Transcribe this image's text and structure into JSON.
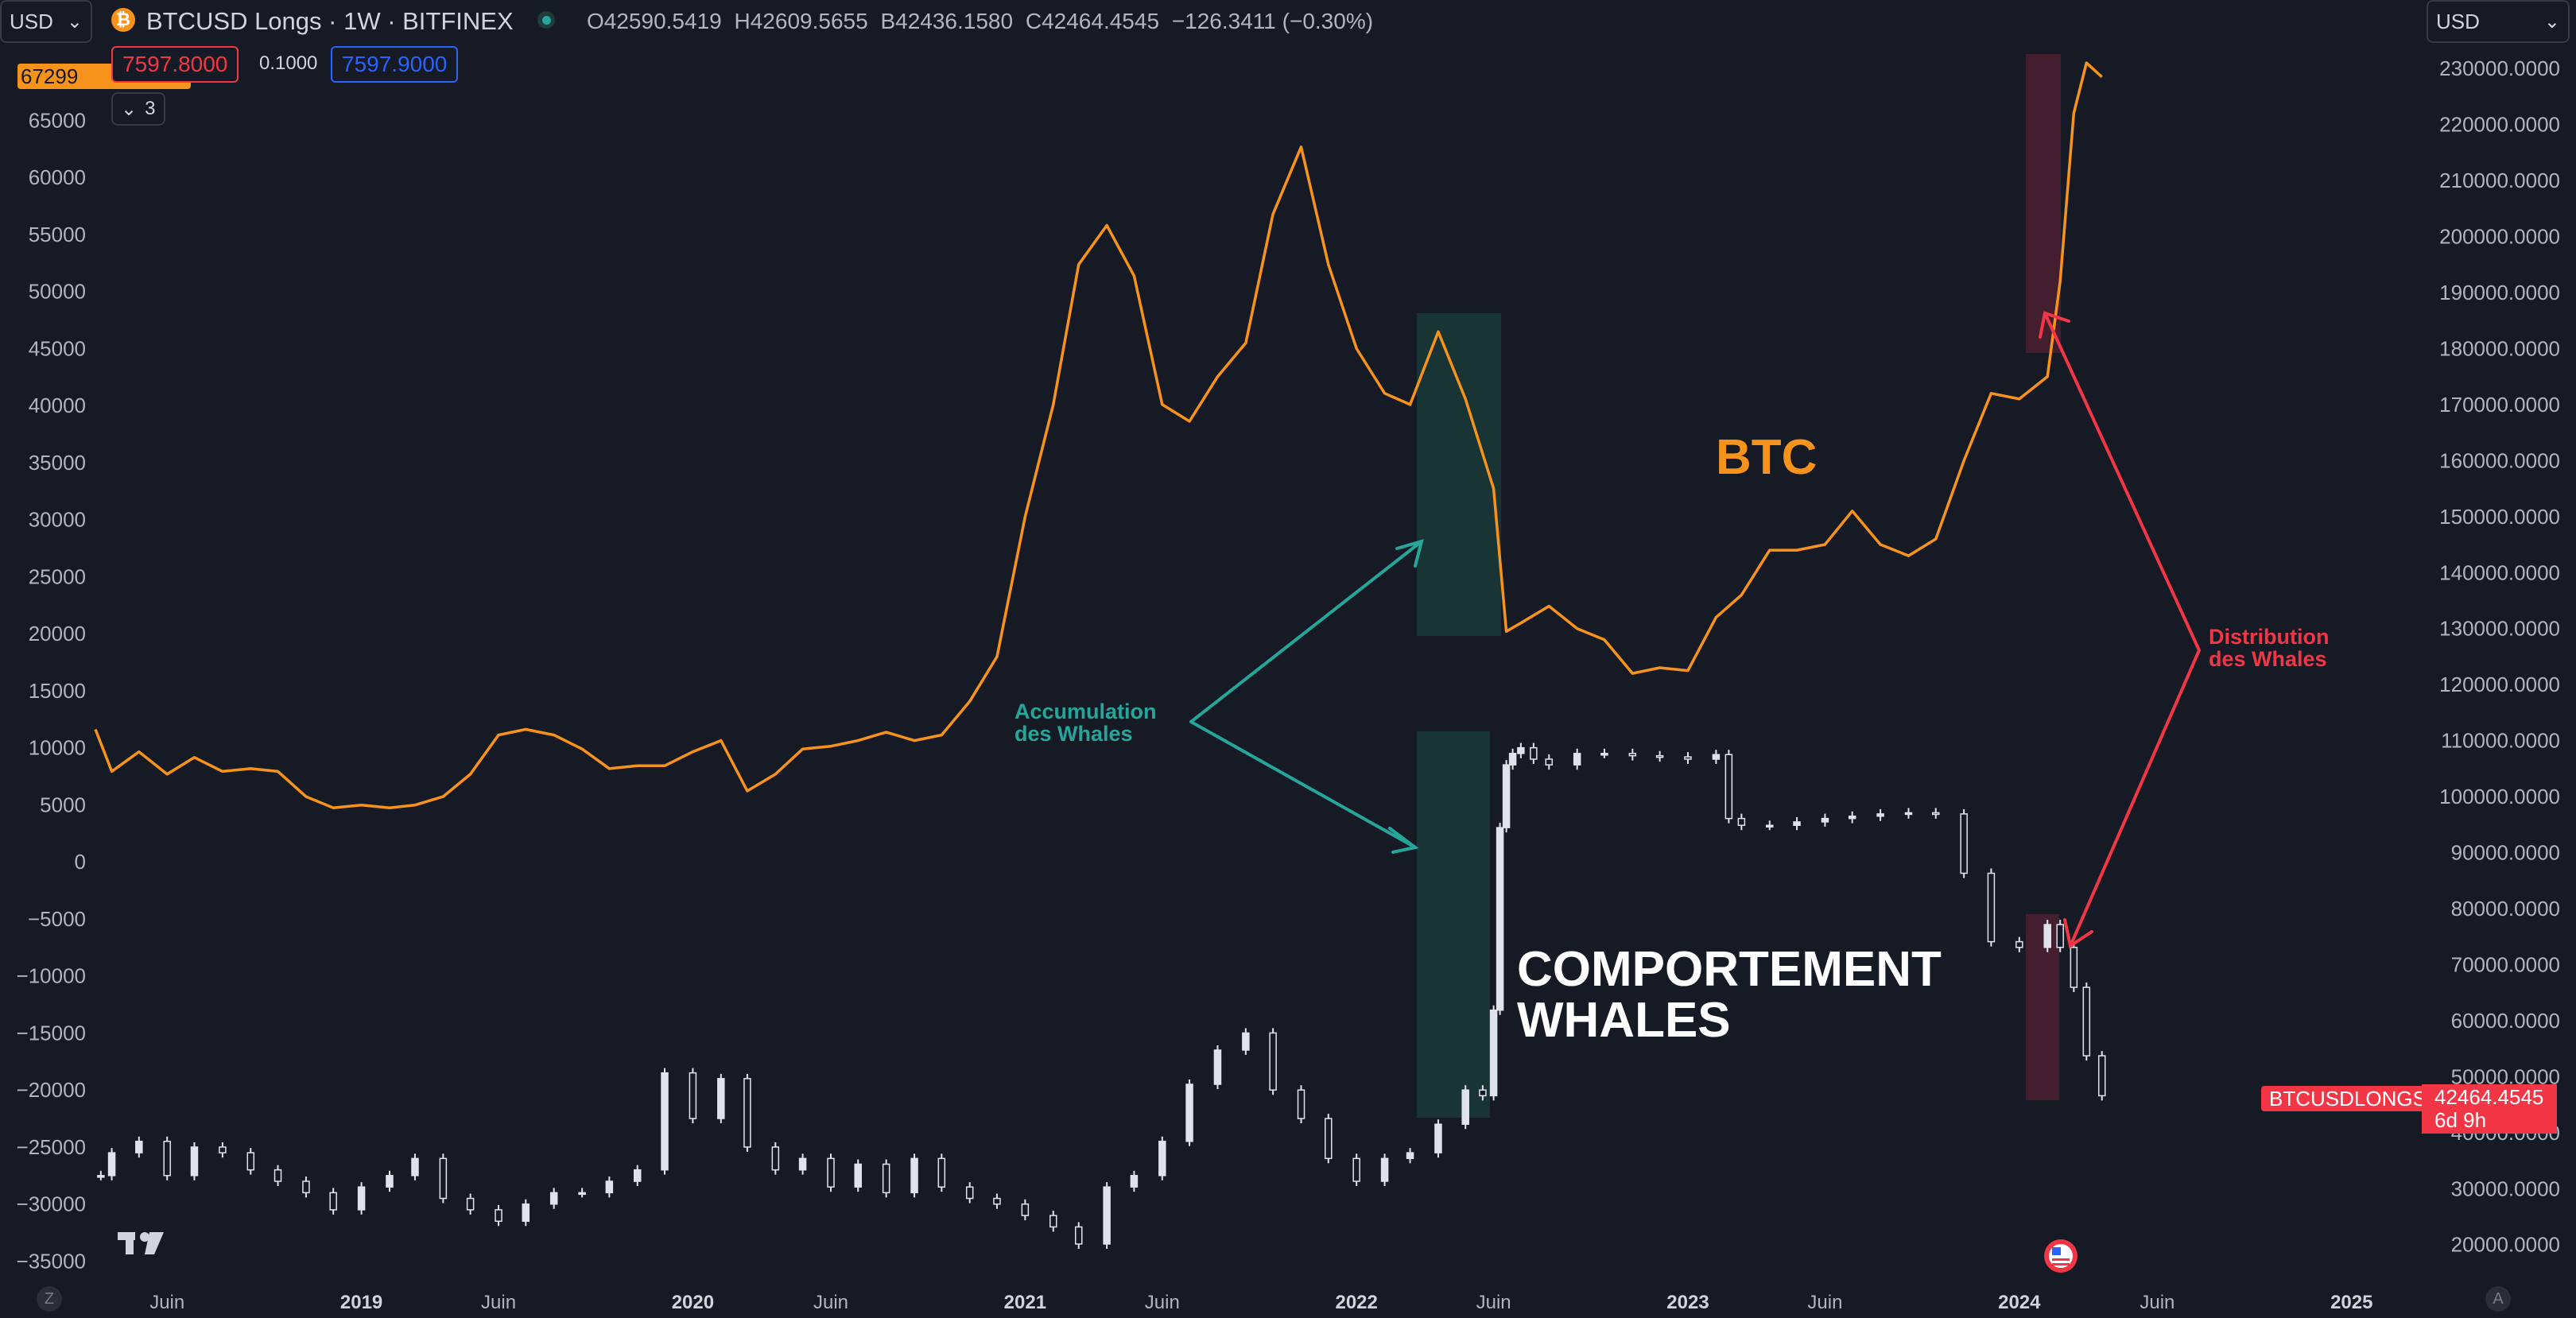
{
  "header": {
    "currency_left": "USD",
    "currency_right": "USD",
    "symbol_title": "BTCUSD Longs · 1W · BITFINEX",
    "ohlc": {
      "o_label": "O",
      "o": "42590.5419",
      "h_label": "H",
      "h": "42609.5655",
      "b_label": "B",
      "b": "42436.1580",
      "c_label": "C",
      "c": "42464.4545",
      "change": "−126.3411 (−0.30%)"
    },
    "bid_price": "7597.8000",
    "spread": "0.1000",
    "ask_price": "7597.9000",
    "indicator_count": "3",
    "btc_price_tag": "67299",
    "chevron_glyph": "⌄"
  },
  "annotations": {
    "btc_label": "BTC",
    "comportement_line1": "COMPORTEMENT",
    "comportement_line2": "WHALES",
    "accumulation_line1": "Accumulation",
    "accumulation_line2": "des Whales",
    "distribution_line1": "Distribution",
    "distribution_line2": "des Whales"
  },
  "last_price": {
    "symbol": "BTCUSDLONGS",
    "value": "42464.4545",
    "countdown": "6d 9h"
  },
  "bottom": {
    "left_button": "Z",
    "right_button": "A"
  },
  "colors": {
    "background": "#161a25",
    "btc_line": "#f7931a",
    "longs_candles": "#e0e3eb",
    "accumulation": "#26a69a",
    "distribution": "#f23645",
    "accumulation_box": "#1a3a38",
    "distribution_box": "#4a2030",
    "ask_blue": "#2962ff"
  },
  "chart_data": {
    "type": "line",
    "left_axis": {
      "ticks": [
        65000,
        60000,
        55000,
        50000,
        45000,
        40000,
        35000,
        30000,
        25000,
        20000,
        15000,
        10000,
        5000,
        0,
        -5000,
        -10000,
        -15000,
        -20000,
        -25000,
        -30000,
        -35000
      ],
      "tick_labels": [
        "65000",
        "60000",
        "55000",
        "50000",
        "45000",
        "40000",
        "35000",
        "30000",
        "25000",
        "20000",
        "15000",
        "10000",
        "5000",
        "0",
        "−5000",
        "−10000",
        "−15000",
        "−20000",
        "−25000",
        "−30000",
        "−35000"
      ],
      "range": [
        -36500,
        71500
      ]
    },
    "right_axis": {
      "ticks": [
        230000,
        220000,
        210000,
        200000,
        190000,
        180000,
        170000,
        160000,
        150000,
        140000,
        130000,
        120000,
        110000,
        100000,
        90000,
        80000,
        70000,
        60000,
        50000,
        40000,
        30000,
        20000
      ],
      "tick_labels": [
        "230000.0000",
        "220000.0000",
        "210000.0000",
        "200000.0000",
        "190000.0000",
        "180000.0000",
        "170000.0000",
        "160000.0000",
        "150000.0000",
        "140000.0000",
        "130000.0000",
        "120000.0000",
        "110000.0000",
        "100000.0000",
        "90000.0000",
        "80000.0000",
        "70000.0000",
        "60000.0000",
        "50000.0000",
        "40000.0000",
        "30000.0000",
        "20000.0000"
      ],
      "range": [
        14000,
        234000
      ]
    },
    "x_axis": {
      "tick_labels": [
        "Juin",
        "2019",
        "Juin",
        "2020",
        "Juin",
        "2021",
        "Juin",
        "2022",
        "Juin",
        "2023",
        "Juin",
        "2024",
        "Juin",
        "2025"
      ],
      "tick_dates": [
        "2018-06-01",
        "2019-01-01",
        "2019-06-01",
        "2020-01-01",
        "2020-06-01",
        "2021-01-01",
        "2021-06-01",
        "2022-01-01",
        "2022-06-01",
        "2023-01-01",
        "2023-06-01",
        "2024-01-01",
        "2024-06-01",
        "2025-01-01"
      ],
      "year_ticks": [
        "2019",
        "2020",
        "2021",
        "2022",
        "2023",
        "2024",
        "2025"
      ],
      "range": [
        "2018-03-14",
        "2025-03-14"
      ]
    },
    "series": [
      {
        "name": "BTCUSD Longs",
        "axis": "left",
        "style": "candles",
        "points": [
          [
            "2018-03-20",
            -27500
          ],
          [
            "2018-04-01",
            -25500
          ],
          [
            "2018-05-01",
            -24500
          ],
          [
            "2018-06-01",
            -27500
          ],
          [
            "2018-07-01",
            -25000
          ],
          [
            "2018-08-01",
            -25500
          ],
          [
            "2018-09-01",
            -27000
          ],
          [
            "2018-10-01",
            -28000
          ],
          [
            "2018-11-01",
            -29000
          ],
          [
            "2018-12-01",
            -30500
          ],
          [
            "2019-01-01",
            -28500
          ],
          [
            "2019-02-01",
            -27500
          ],
          [
            "2019-03-01",
            -26000
          ],
          [
            "2019-04-01",
            -29500
          ],
          [
            "2019-05-01",
            -30500
          ],
          [
            "2019-06-01",
            -31500
          ],
          [
            "2019-07-01",
            -30000
          ],
          [
            "2019-08-01",
            -29000
          ],
          [
            "2019-09-01",
            -29000
          ],
          [
            "2019-10-01",
            -28000
          ],
          [
            "2019-11-01",
            -27000
          ],
          [
            "2019-12-01",
            -18500
          ],
          [
            "2020-01-01",
            -22500
          ],
          [
            "2020-02-01",
            -19000
          ],
          [
            "2020-03-01",
            -25000
          ],
          [
            "2020-04-01",
            -27000
          ],
          [
            "2020-05-01",
            -26000
          ],
          [
            "2020-06-01",
            -28500
          ],
          [
            "2020-07-01",
            -26500
          ],
          [
            "2020-08-01",
            -29000
          ],
          [
            "2020-09-01",
            -26000
          ],
          [
            "2020-10-01",
            -28500
          ],
          [
            "2020-11-01",
            -29500
          ],
          [
            "2020-12-01",
            -30000
          ],
          [
            "2021-01-01",
            -31000
          ],
          [
            "2021-02-01",
            -32000
          ],
          [
            "2021-03-01",
            -33500
          ],
          [
            "2021-04-01",
            -28500
          ],
          [
            "2021-05-01",
            -27500
          ],
          [
            "2021-06-01",
            -24500
          ],
          [
            "2021-07-01",
            -19500
          ],
          [
            "2021-08-01",
            -16500
          ],
          [
            "2021-09-01",
            -15000
          ],
          [
            "2021-10-01",
            -20000
          ],
          [
            "2021-11-01",
            -22500
          ],
          [
            "2021-12-01",
            -26000
          ],
          [
            "2022-01-01",
            -28000
          ],
          [
            "2022-02-01",
            -26000
          ],
          [
            "2022-03-01",
            -25500
          ],
          [
            "2022-04-01",
            -23000
          ],
          [
            "2022-05-01",
            -20000
          ],
          [
            "2022-05-20",
            -20500
          ],
          [
            "2022-06-01",
            -13000
          ],
          [
            "2022-06-08",
            3000
          ],
          [
            "2022-06-15",
            8500
          ],
          [
            "2022-06-22",
            9500
          ],
          [
            "2022-07-01",
            10000
          ],
          [
            "2022-07-15",
            9000
          ],
          [
            "2022-08-01",
            8500
          ],
          [
            "2022-09-01",
            9500
          ],
          [
            "2022-10-01",
            9500
          ],
          [
            "2022-11-01",
            9300
          ],
          [
            "2022-12-01",
            9200
          ],
          [
            "2023-01-01",
            9000
          ],
          [
            "2023-02-01",
            9400
          ],
          [
            "2023-02-15",
            3800
          ],
          [
            "2023-03-01",
            3200
          ],
          [
            "2023-04-01",
            3200
          ],
          [
            "2023-05-01",
            3500
          ],
          [
            "2023-06-01",
            3800
          ],
          [
            "2023-07-01",
            4000
          ],
          [
            "2023-08-01",
            4200
          ],
          [
            "2023-09-01",
            4300
          ],
          [
            "2023-10-01",
            4200
          ],
          [
            "2023-11-01",
            -1000
          ],
          [
            "2023-12-01",
            -7000
          ],
          [
            "2024-01-01",
            -7500
          ],
          [
            "2024-02-01",
            -5500
          ],
          [
            "2024-02-15",
            -7500
          ],
          [
            "2024-03-01",
            -11000
          ],
          [
            "2024-03-15",
            -17000
          ],
          [
            "2024-04-01",
            -20500
          ]
        ]
      },
      {
        "name": "BTC",
        "axis": "right",
        "style": "line",
        "points": [
          [
            "2018-03-14",
            112000
          ],
          [
            "2018-04-01",
            104500
          ],
          [
            "2018-05-01",
            108000
          ],
          [
            "2018-06-01",
            104000
          ],
          [
            "2018-07-01",
            107000
          ],
          [
            "2018-08-01",
            104500
          ],
          [
            "2018-09-01",
            105000
          ],
          [
            "2018-10-01",
            104500
          ],
          [
            "2018-11-01",
            100000
          ],
          [
            "2018-12-01",
            98000
          ],
          [
            "2019-01-01",
            98500
          ],
          [
            "2019-02-01",
            98000
          ],
          [
            "2019-03-01",
            98500
          ],
          [
            "2019-04-01",
            100000
          ],
          [
            "2019-05-01",
            104000
          ],
          [
            "2019-06-01",
            111000
          ],
          [
            "2019-07-01",
            112000
          ],
          [
            "2019-08-01",
            111000
          ],
          [
            "2019-09-01",
            108500
          ],
          [
            "2019-10-01",
            105000
          ],
          [
            "2019-11-01",
            105500
          ],
          [
            "2019-12-01",
            105500
          ],
          [
            "2020-01-01",
            108000
          ],
          [
            "2020-02-01",
            110000
          ],
          [
            "2020-03-01",
            101000
          ],
          [
            "2020-04-01",
            104000
          ],
          [
            "2020-05-01",
            108500
          ],
          [
            "2020-06-01",
            109000
          ],
          [
            "2020-07-01",
            110000
          ],
          [
            "2020-08-01",
            111500
          ],
          [
            "2020-09-01",
            110000
          ],
          [
            "2020-10-01",
            111000
          ],
          [
            "2020-11-01",
            117000
          ],
          [
            "2020-12-01",
            125000
          ],
          [
            "2021-01-01",
            150000
          ],
          [
            "2021-02-01",
            170000
          ],
          [
            "2021-03-01",
            195000
          ],
          [
            "2021-04-01",
            202000
          ],
          [
            "2021-05-01",
            193000
          ],
          [
            "2021-06-01",
            170000
          ],
          [
            "2021-07-01",
            167000
          ],
          [
            "2021-08-01",
            175000
          ],
          [
            "2021-09-01",
            181000
          ],
          [
            "2021-10-01",
            204000
          ],
          [
            "2021-11-01",
            216000
          ],
          [
            "2021-12-01",
            195000
          ],
          [
            "2022-01-01",
            180000
          ],
          [
            "2022-02-01",
            172000
          ],
          [
            "2022-03-01",
            170000
          ],
          [
            "2022-04-01",
            183000
          ],
          [
            "2022-05-01",
            171000
          ],
          [
            "2022-06-01",
            155000
          ],
          [
            "2022-06-15",
            129500
          ],
          [
            "2022-07-01",
            131000
          ],
          [
            "2022-08-01",
            134000
          ],
          [
            "2022-09-01",
            130000
          ],
          [
            "2022-10-01",
            128000
          ],
          [
            "2022-11-01",
            122000
          ],
          [
            "2022-12-01",
            123000
          ],
          [
            "2023-01-01",
            122500
          ],
          [
            "2023-02-01",
            132000
          ],
          [
            "2023-03-01",
            136000
          ],
          [
            "2023-04-01",
            144000
          ],
          [
            "2023-05-01",
            144000
          ],
          [
            "2023-06-01",
            145000
          ],
          [
            "2023-07-01",
            151000
          ],
          [
            "2023-08-01",
            145000
          ],
          [
            "2023-09-01",
            143000
          ],
          [
            "2023-10-01",
            146000
          ],
          [
            "2023-11-01",
            160000
          ],
          [
            "2023-12-01",
            172000
          ],
          [
            "2024-01-01",
            171000
          ],
          [
            "2024-02-01",
            175000
          ],
          [
            "2024-02-15",
            192000
          ],
          [
            "2024-03-01",
            222000
          ],
          [
            "2024-03-15",
            231000
          ],
          [
            "2024-04-01",
            228500
          ]
        ]
      }
    ]
  }
}
